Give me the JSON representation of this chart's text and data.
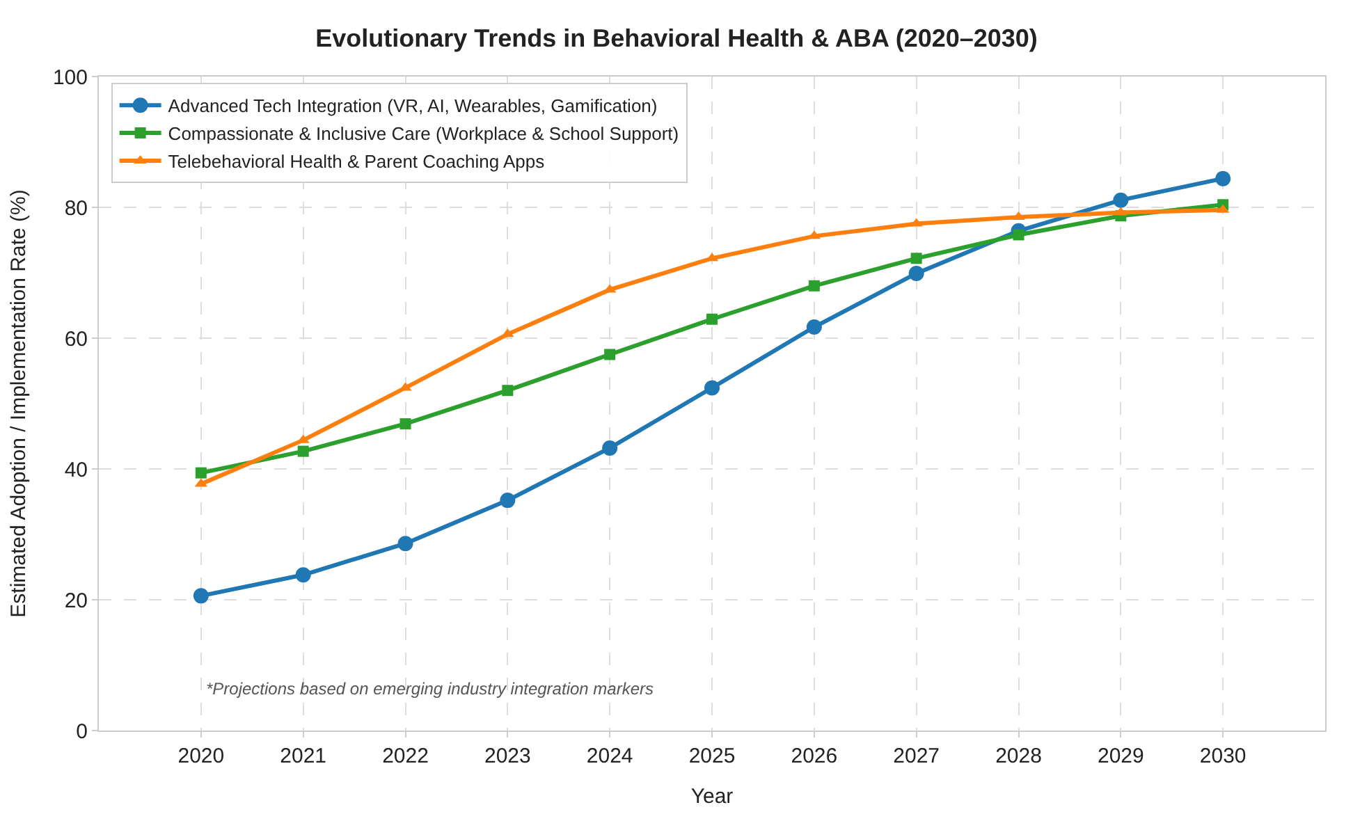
{
  "chart_data": {
    "type": "line",
    "title": "Evolutionary Trends in Behavioral Health & ABA (2020–2030)",
    "xlabel": "Year",
    "ylabel": "Estimated Adoption / Implementation Rate (%)",
    "x": [
      2020,
      2021,
      2022,
      2023,
      2024,
      2025,
      2026,
      2027,
      2028,
      2029,
      2030
    ],
    "series": [
      {
        "name": "Advanced Tech Integration (VR, AI, Wearables, Gamification)",
        "color": "#1f77b4",
        "marker": "circle",
        "values": [
          20.6,
          23.8,
          28.6,
          35.2,
          43.2,
          52.4,
          61.7,
          69.9,
          76.4,
          81.1,
          84.4
        ]
      },
      {
        "name": "Compassionate & Inclusive Care (Workplace & School Support)",
        "color": "#2ca02c",
        "marker": "square",
        "values": [
          39.4,
          42.7,
          46.9,
          52.0,
          57.5,
          62.9,
          68.0,
          72.2,
          75.8,
          78.7,
          80.4
        ]
      },
      {
        "name": "Telebehavioral Health & Parent Coaching Apps",
        "color": "#ff7f0e",
        "marker": "triangle",
        "values": [
          37.7,
          44.4,
          52.4,
          60.6,
          67.4,
          72.2,
          75.6,
          77.5,
          78.5,
          79.2,
          79.6
        ]
      }
    ],
    "xlim": [
      2019,
      2031
    ],
    "xticks": [
      2020,
      2021,
      2022,
      2023,
      2024,
      2025,
      2026,
      2027,
      2028,
      2029,
      2030
    ],
    "ylim": [
      0,
      100
    ],
    "yticks": [
      0,
      20,
      40,
      60,
      80,
      100
    ],
    "grid": true,
    "legend": "top left",
    "line_style": "solid",
    "annotations": [
      "*Projections based on emerging industry integration markers"
    ]
  }
}
